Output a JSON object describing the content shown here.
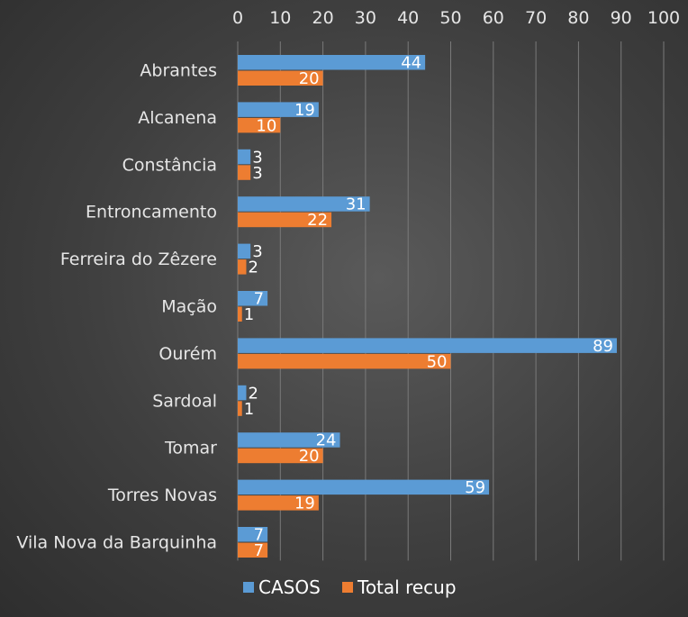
{
  "chart_data": {
    "type": "bar",
    "orientation": "horizontal",
    "title": "",
    "xlabel": "",
    "ylabel": "",
    "xlim": [
      0,
      100
    ],
    "x_ticks": [
      0,
      10,
      20,
      30,
      40,
      50,
      60,
      70,
      80,
      90,
      100
    ],
    "grid": "vertical",
    "legend_position": "bottom",
    "categories": [
      "Abrantes",
      "Alcanena",
      "Constância",
      "Entroncamento",
      "Ferreira do Zêzere",
      "Mação",
      "Ourém",
      "Sardoal",
      "Tomar",
      "Torres Novas",
      "Vila Nova da Barquinha"
    ],
    "series": [
      {
        "name": "CASOS",
        "color": "#5b9bd5",
        "values": [
          44,
          19,
          3,
          31,
          3,
          7,
          89,
          2,
          24,
          59,
          7
        ]
      },
      {
        "name": "Total recup",
        "color": "#ed7d31",
        "values": [
          20,
          10,
          3,
          22,
          2,
          1,
          50,
          1,
          20,
          19,
          7
        ]
      }
    ]
  }
}
